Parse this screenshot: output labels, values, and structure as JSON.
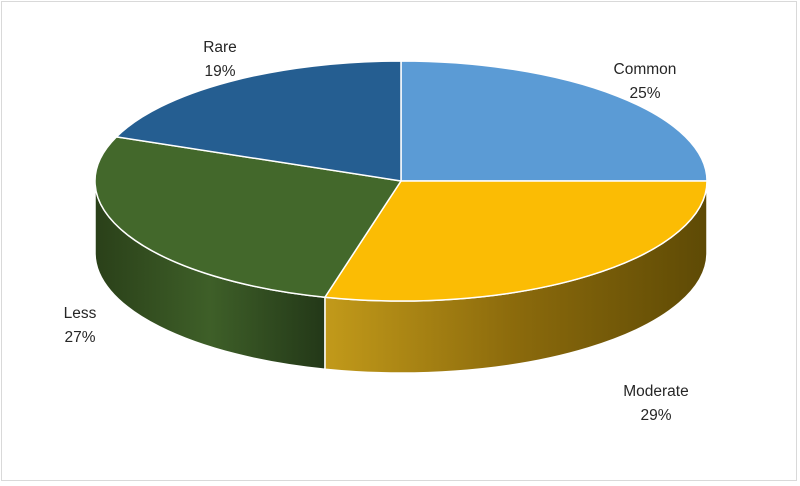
{
  "chart_data": {
    "type": "pie",
    "style": "3d",
    "categories": [
      "Common",
      "Moderate",
      "Less",
      "Rare"
    ],
    "values": [
      25,
      29,
      27,
      19
    ],
    "value_labels": [
      "25%",
      "29%",
      "27%",
      "19%"
    ],
    "colors": [
      "#5B9BD5",
      "#FBBC04",
      "#43682B",
      "#255E91"
    ],
    "side_colors": [
      "#3F7BB8",
      "#8A6A04",
      "#2F4A1F",
      "#1A4570"
    ],
    "title": "",
    "legend": "none",
    "data_labels": "outside"
  }
}
